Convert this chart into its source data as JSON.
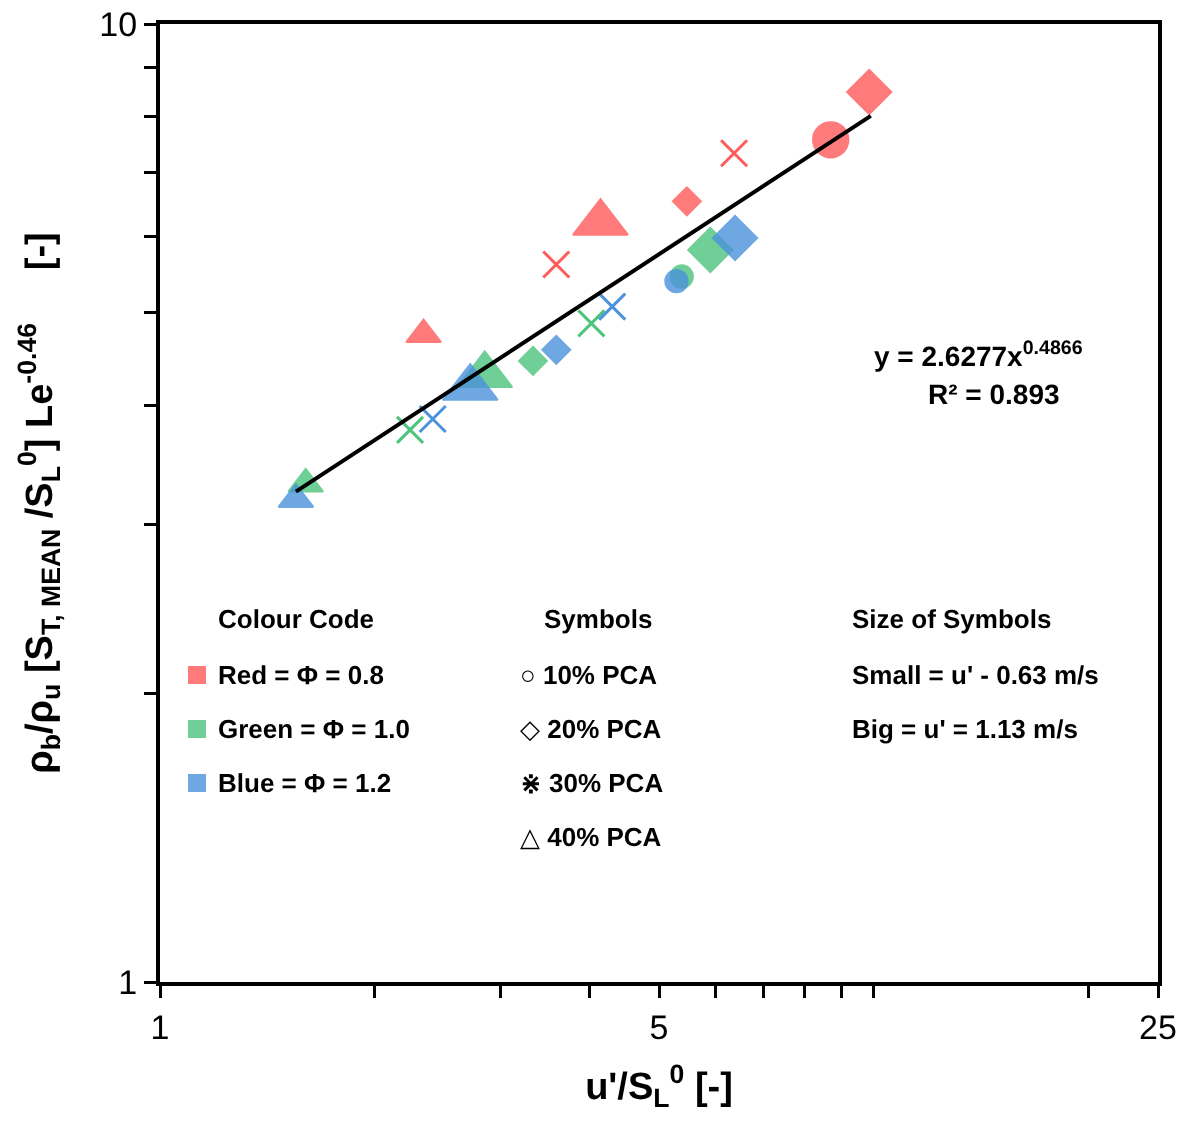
{
  "chart_data": {
    "type": "scatter",
    "xlabel": "u'/S$_{L}$$^{0}$ [-]",
    "ylabel": "ρ$_{b}$/ρ$_{u}$ [S$_{T, MEAN}$ /S$_{L}$$^{0}$] Le$^{-0.46}$     [-]",
    "log": "xy",
    "grid": false,
    "xlim": [
      1,
      25
    ],
    "ylim": [
      1,
      10
    ],
    "xticks": [
      1,
      {
        "value": 2,
        "label": null
      },
      {
        "value": 3,
        "label": null
      },
      {
        "value": 4,
        "label": null
      },
      5,
      {
        "value": 6,
        "label": null
      },
      {
        "value": 7,
        "label": null
      },
      {
        "value": 8,
        "label": null
      },
      {
        "value": 9,
        "label": null
      },
      {
        "value": 10,
        "label": null
      },
      {
        "value": 20,
        "label": null
      },
      25
    ],
    "yticks": [
      1,
      {
        "value": 2,
        "label": null
      },
      {
        "value": 3,
        "label": null
      },
      {
        "value": 4,
        "label": null
      },
      {
        "value": 5,
        "label": null
      },
      {
        "value": 6,
        "label": null
      },
      {
        "value": 7,
        "label": null
      },
      {
        "value": 8,
        "label": null
      },
      {
        "value": 9,
        "label": null
      },
      10
    ],
    "series": [
      {
        "color": "#ff5b5b",
        "marker": "circle",
        "sizes": [
          1
        ],
        "x": [
          8.7
        ],
        "values": [
          7.57
        ]
      },
      {
        "color": "#ff5b5b",
        "marker": "diamond",
        "sizes": [
          0.4,
          1
        ],
        "x": [
          5.47,
          9.85
        ],
        "values": [
          6.53,
          8.49
        ]
      },
      {
        "color": "#ff5b5b",
        "marker": "cross",
        "x": [
          3.59,
          6.37
        ],
        "values": [
          5.61,
          7.33
        ]
      },
      {
        "color": "#ff5b5b",
        "marker": "triangle",
        "sizes": [
          0.4,
          1
        ],
        "x": [
          2.34,
          4.14
        ],
        "values": [
          4.74,
          6.2
        ]
      },
      {
        "color": "#4cc47c",
        "marker": "circle",
        "sizes": [
          0.4
        ],
        "x": [
          5.38
        ],
        "values": [
          5.45
        ]
      },
      {
        "color": "#4cc47c",
        "marker": "diamond",
        "sizes": [
          0.4,
          1
        ],
        "x": [
          3.33,
          5.9
        ],
        "values": [
          4.45,
          5.81
        ]
      },
      {
        "color": "#4cc47c",
        "marker": "cross",
        "x": [
          2.24,
          4.02
        ],
        "values": [
          3.77,
          4.87
        ]
      },
      {
        "color": "#4cc47c",
        "marker": "triangle",
        "sizes": [
          0.4,
          1
        ],
        "x": [
          1.6,
          2.85
        ],
        "values": [
          3.31,
          4.3
        ]
      },
      {
        "color": "#4a92dc",
        "marker": "circle",
        "sizes": [
          0.4
        ],
        "x": [
          5.29
        ],
        "values": [
          5.39
        ]
      },
      {
        "color": "#4a92dc",
        "marker": "diamond",
        "sizes": [
          0.4,
          1
        ],
        "x": [
          3.59,
          6.39
        ],
        "values": [
          4.57,
          5.98
        ]
      },
      {
        "color": "#4a92dc",
        "marker": "cross",
        "x": [
          2.41,
          4.3
        ],
        "values": [
          3.87,
          5.07
        ]
      },
      {
        "color": "#4a92dc",
        "marker": "triangle",
        "sizes": [
          0.4,
          1
        ],
        "x": [
          1.55,
          2.72
        ],
        "values": [
          3.19,
          4.17
        ]
      },
      {
        "type": "line",
        "color": "#000000",
        "marker": "none",
        "x": [
          1.55,
          9.9
        ],
        "values": [
          3.25,
          8.02
        ]
      }
    ],
    "annotations": [
      "y = 2.6277x$^{0.4866}$",
      "R² = 0.893",
      "Colour Code",
      "Red = Φ = 0.8",
      "Green = Φ = 1.0",
      "Blue = Φ = 1.2",
      "Symbols",
      "○ 10% PCA",
      "◇ 20% PCA",
      "⋇ 30% PCA",
      "△ 40% PCA",
      "Size of Symbols",
      "Small = u' - 0.63 m/s",
      "Big = u' = 1.13 m/s"
    ]
  }
}
